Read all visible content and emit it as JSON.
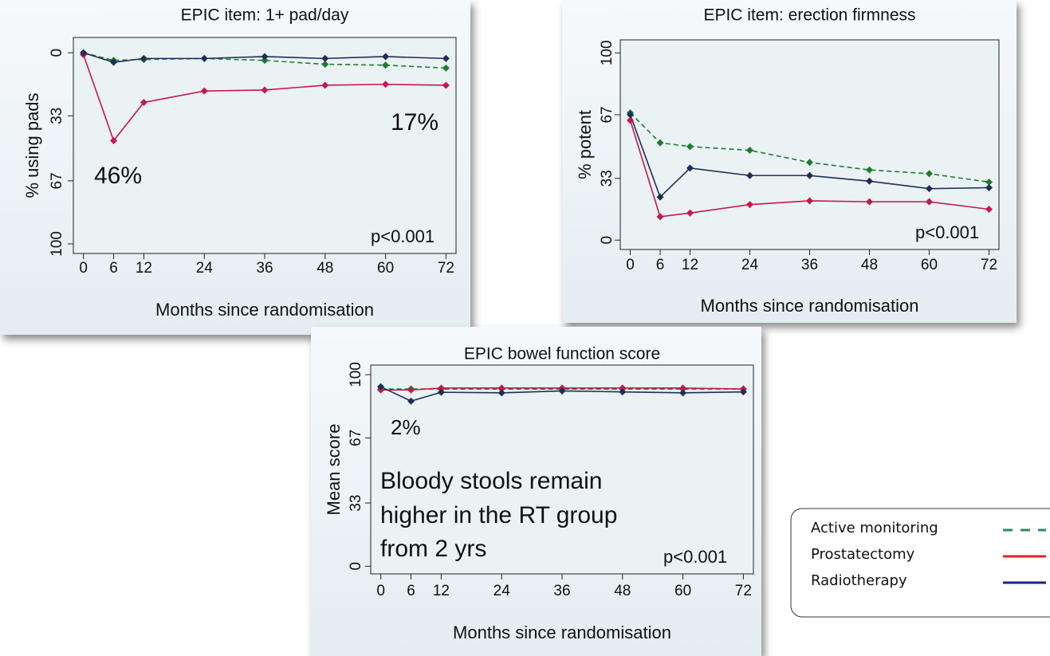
{
  "chart_data": [
    {
      "type": "line",
      "title": "EPIC item: 1+ pad/day",
      "ylabel": "% using pads",
      "xlabel": "Months since randomisation",
      "x": [
        0,
        6,
        12,
        24,
        36,
        48,
        60,
        72
      ],
      "xlim": [
        -2,
        74
      ],
      "xticks": [
        0,
        6,
        12,
        24,
        36,
        48,
        60,
        72
      ],
      "ylim": [
        -8,
        105
      ],
      "yticks": [
        0,
        33,
        67,
        100
      ],
      "y_inverted": true,
      "series": [
        {
          "color": "#1e7b2e",
          "dashed": true,
          "values": [
            0,
            4,
            3.5,
            3,
            4,
            6,
            6.5,
            8
          ]
        },
        {
          "color": "#c8174a",
          "dashed": false,
          "values": [
            1,
            46,
            26,
            20,
            19.5,
            17,
            16.5,
            17
          ]
        },
        {
          "color": "#1f2d5c",
          "dashed": false,
          "values": [
            0,
            5,
            3,
            3,
            2,
            3,
            2,
            3
          ]
        }
      ],
      "annotations": [
        {
          "text": "46%",
          "color": "#ff0000"
        },
        {
          "text": "17%",
          "color": "#ff0000"
        },
        {
          "text": "p<0.001",
          "color": "#111111"
        }
      ]
    },
    {
      "type": "line",
      "title": "EPIC item: erection firmness",
      "ylabel": "% potent",
      "xlabel": "Months since randomisation",
      "x": [
        0,
        6,
        12,
        24,
        36,
        48,
        60,
        72
      ],
      "xlim": [
        -2,
        74
      ],
      "xticks": [
        0,
        6,
        12,
        24,
        36,
        48,
        60,
        72
      ],
      "ylim": [
        -5,
        107
      ],
      "yticks": [
        0,
        33,
        67,
        100
      ],
      "y_inverted": false,
      "series": [
        {
          "color": "#1e7b2e",
          "dashed": true,
          "values": [
            68,
            52,
            50,
            48,
            41.5,
            37.5,
            35.5,
            31
          ]
        },
        {
          "color": "#c8174a",
          "dashed": false,
          "values": [
            64,
            12.5,
            14.5,
            19,
            21,
            20.5,
            20.5,
            16.5
          ]
        },
        {
          "color": "#1f2d5c",
          "dashed": false,
          "values": [
            67,
            23,
            38.5,
            34.5,
            34.5,
            31.5,
            27.5,
            28
          ]
        }
      ],
      "annotations": [
        {
          "text": "p<0.001",
          "color": "#111111"
        }
      ]
    },
    {
      "type": "line",
      "title": "EPIC bowel function score",
      "ylabel": "Mean score",
      "xlabel": "Months since randomisation",
      "x": [
        0,
        6,
        12,
        24,
        36,
        48,
        60,
        72
      ],
      "xlim": [
        -2,
        74
      ],
      "xticks": [
        0,
        6,
        12,
        24,
        36,
        48,
        60,
        72
      ],
      "ylim": [
        -4,
        105
      ],
      "yticks": [
        0,
        33,
        67,
        100
      ],
      "y_inverted": false,
      "series": [
        {
          "color": "#1e7b2e",
          "dashed": true,
          "values": [
            92.5,
            92.5,
            92.5,
            92.5,
            92.5,
            92.5,
            92.5,
            92.5
          ]
        },
        {
          "color": "#c8174a",
          "dashed": false,
          "values": [
            92,
            92,
            93,
            93,
            93,
            93,
            93,
            92.5
          ]
        },
        {
          "color": "#1f2d5c",
          "dashed": false,
          "values": [
            93.7,
            86.2,
            90.8,
            90.5,
            91.5,
            91,
            90.5,
            91
          ]
        }
      ],
      "annotations": [
        {
          "text": "2%",
          "color": "#ff0000"
        },
        {
          "text": "Bloody stools remain",
          "color": "#111111"
        },
        {
          "text": "higher in the RT group",
          "color": "#111111"
        },
        {
          "text": "from 2 yrs",
          "color": "#111111"
        },
        {
          "text": "p<0.001",
          "color": "#111111"
        }
      ]
    }
  ],
  "legend": [
    {
      "name": "Active monitoring",
      "color": "#2e8b57",
      "dashed": true
    },
    {
      "name": "Prostatectomy",
      "color": "#e02020",
      "dashed": false
    },
    {
      "name": "Radiotherapy",
      "color": "#1a237e",
      "dashed": false
    }
  ]
}
